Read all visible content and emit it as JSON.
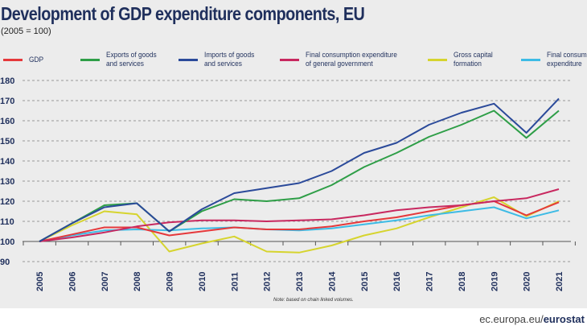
{
  "title": "Development of GDP expenditure components, EU",
  "subtitle": "(2005 = 100)",
  "note": "Note: based on chain linked volumes.",
  "source": {
    "domain": "ec.europa.eu/",
    "brand": "eurostat"
  },
  "chart_data": {
    "type": "line",
    "title": "Development of GDP expenditure components, EU",
    "subtitle": "(2005 = 100)",
    "x": [
      "2005",
      "2006",
      "2007",
      "2008",
      "2009",
      "2010",
      "2011",
      "2012",
      "2013",
      "2014",
      "2015",
      "2016",
      "2017",
      "2018",
      "2019",
      "2020",
      "2021"
    ],
    "yticks": [
      "90",
      "100",
      "110",
      "120",
      "130",
      "140",
      "150",
      "160",
      "170",
      "180"
    ],
    "ylim": [
      90,
      180
    ],
    "grid": true,
    "legend_placement": "top",
    "series": [
      {
        "name": "GDP",
        "color": "#e5383b",
        "values": [
          100,
          103.5,
          107,
          107,
          103,
          105,
          107,
          106,
          106,
          107.5,
          110,
          112,
          115,
          118,
          120,
          113,
          119.5
        ]
      },
      {
        "name": "Exports of goods and services",
        "color": "#2e9e47",
        "values": [
          100,
          109,
          118,
          119,
          105,
          115,
          121,
          120,
          121.5,
          128,
          137,
          144,
          152,
          158,
          165,
          151.5,
          165
        ]
      },
      {
        "name": "Imports of goods and services",
        "color": "#2b4a9a",
        "values": [
          100,
          109,
          117,
          119,
          105,
          116,
          124,
          126.5,
          129,
          135,
          144,
          149,
          158,
          164,
          168.5,
          154,
          171
        ]
      },
      {
        "name": "Final consumption expenditure of general government",
        "color": "#c8285f",
        "values": [
          100,
          102,
          104.5,
          107.5,
          109.5,
          110.5,
          110.5,
          110,
          110.5,
          111,
          113,
          115.5,
          117,
          118,
          120,
          121.5,
          126
        ]
      },
      {
        "name": "Gross capital formation",
        "color": "#d6d42e",
        "values": [
          100,
          108,
          115,
          113.5,
          95,
          99,
          102.5,
          95,
          94.5,
          98,
          103,
          106.5,
          112,
          117,
          122,
          112.5,
          120
        ]
      },
      {
        "name": "Final consumption expenditure",
        "color": "#3dbbe5",
        "values": [
          100,
          103,
          105.5,
          106,
          105.5,
          106.5,
          107,
          106,
          105.5,
          106.5,
          108.5,
          110.5,
          113,
          115,
          117,
          111.5,
          115.5
        ]
      }
    ],
    "legend_lines": [
      [
        "GDP"
      ],
      [
        "Exports of goods",
        "and services"
      ],
      [
        "Imports of goods",
        "and services"
      ],
      [
        "Final consumption expenditure",
        "of general government"
      ],
      [
        "Gross capital",
        "formation"
      ],
      [
        "Final consumption",
        "expenditure"
      ]
    ]
  }
}
